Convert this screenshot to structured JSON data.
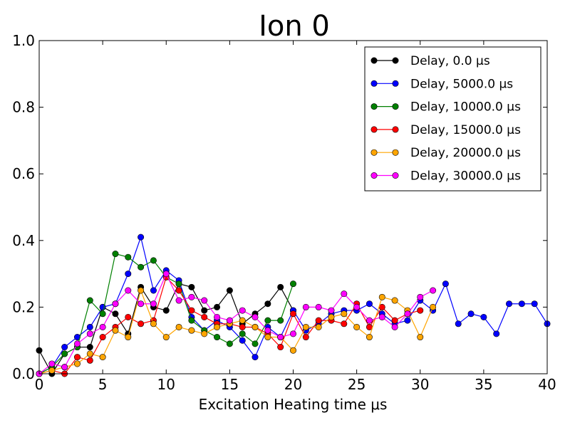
{
  "chart_data": {
    "type": "line",
    "title": "Ion 0",
    "xlabel": "Excitation Heating time μs",
    "ylabel": "",
    "xlim": [
      0,
      40
    ],
    "ylim": [
      0,
      1.0
    ],
    "xticks": [
      0,
      5,
      10,
      15,
      20,
      25,
      30,
      35,
      40
    ],
    "xtick_labels": [
      "0",
      "5",
      "10",
      "15",
      "20",
      "25",
      "30",
      "35",
      "40"
    ],
    "yticks": [
      0.0,
      0.2,
      0.4,
      0.6,
      0.8,
      1.0
    ],
    "ytick_labels": [
      "0.0",
      "0.2",
      "0.4",
      "0.6",
      "0.8",
      "1.0"
    ],
    "grid": false,
    "legend_position": "top-right",
    "series": [
      {
        "name": "Delay, 0.0 μs",
        "color": "#000000",
        "x": [
          0,
          1,
          2,
          3,
          4,
          5,
          6,
          7,
          8,
          9,
          10,
          11,
          12,
          13,
          14,
          15,
          16,
          17,
          18,
          19,
          20
        ],
        "y": [
          0.07,
          0.0,
          0.06,
          0.08,
          0.08,
          0.2,
          0.18,
          0.12,
          0.26,
          0.2,
          0.19,
          0.27,
          0.26,
          0.19,
          0.2,
          0.25,
          0.15,
          0.18,
          0.21,
          0.26,
          0.19
        ]
      },
      {
        "name": "Delay, 5000.0 μs",
        "color": "#0000ff",
        "x": [
          0,
          1,
          2,
          3,
          4,
          5,
          6,
          7,
          8,
          9,
          10,
          11,
          12,
          13,
          14,
          15,
          16,
          17,
          18,
          19,
          20,
          21,
          22,
          23,
          24,
          25,
          26,
          27,
          28,
          29,
          30,
          31,
          32,
          33,
          34,
          35,
          36,
          37,
          38,
          39,
          40
        ],
        "y": [
          0.0,
          0.02,
          0.08,
          0.11,
          0.14,
          0.2,
          0.21,
          0.3,
          0.41,
          0.25,
          0.31,
          0.28,
          0.17,
          0.13,
          0.16,
          0.14,
          0.1,
          0.05,
          0.14,
          0.11,
          0.19,
          0.13,
          0.15,
          0.18,
          0.19,
          0.19,
          0.21,
          0.18,
          0.15,
          0.16,
          0.22,
          0.19,
          0.27,
          0.15,
          0.18,
          0.17,
          0.12,
          0.21,
          0.21,
          0.21,
          0.15
        ]
      },
      {
        "name": "Delay, 10000.0 μs",
        "color": "#008000",
        "x": [
          0,
          1,
          2,
          3,
          4,
          5,
          6,
          7,
          8,
          9,
          10,
          11,
          12,
          13,
          14,
          15,
          16,
          17,
          18,
          19,
          20
        ],
        "y": [
          0.0,
          0.02,
          0.06,
          0.08,
          0.22,
          0.18,
          0.36,
          0.35,
          0.32,
          0.34,
          0.29,
          0.27,
          0.16,
          0.13,
          0.11,
          0.09,
          0.12,
          0.09,
          0.16,
          0.16,
          0.27
        ]
      },
      {
        "name": "Delay, 15000.0 μs",
        "color": "#ff0000",
        "x": [
          0,
          1,
          2,
          3,
          4,
          5,
          6,
          7,
          8,
          9,
          10,
          11,
          12,
          13,
          14,
          15,
          16,
          17,
          18,
          19,
          20,
          21,
          22,
          23,
          24,
          25,
          26,
          27,
          28,
          29,
          30
        ],
        "y": [
          0.0,
          0.01,
          0.0,
          0.05,
          0.04,
          0.11,
          0.14,
          0.17,
          0.15,
          0.16,
          0.29,
          0.25,
          0.19,
          0.17,
          0.15,
          0.15,
          0.14,
          0.14,
          0.12,
          0.08,
          0.18,
          0.11,
          0.16,
          0.16,
          0.15,
          0.21,
          0.14,
          0.2,
          0.16,
          0.18,
          0.19
        ]
      },
      {
        "name": "Delay, 20000.0 μs",
        "color": "#ffa500",
        "x": [
          0,
          1,
          2,
          3,
          4,
          5,
          6,
          7,
          8,
          9,
          10,
          11,
          12,
          13,
          14,
          15,
          16,
          17,
          18,
          19,
          20,
          21,
          22,
          23,
          24,
          25,
          26,
          27,
          28,
          29,
          30,
          31
        ],
        "y": [
          0.0,
          0.01,
          0.02,
          0.03,
          0.06,
          0.05,
          0.13,
          0.11,
          0.25,
          0.15,
          0.11,
          0.14,
          0.13,
          0.12,
          0.14,
          0.15,
          0.16,
          0.14,
          0.11,
          0.11,
          0.07,
          0.14,
          0.14,
          0.17,
          0.18,
          0.14,
          0.11,
          0.23,
          0.22,
          0.19,
          0.11,
          0.2
        ]
      },
      {
        "name": "Delay, 30000.0 μs",
        "color": "#ff00ff",
        "x": [
          0,
          1,
          2,
          3,
          4,
          5,
          6,
          7,
          8,
          9,
          10,
          11,
          12,
          13,
          14,
          15,
          16,
          17,
          18,
          19,
          20,
          21,
          22,
          23,
          24,
          25,
          26,
          27,
          28,
          29,
          30,
          31
        ],
        "y": [
          0.0,
          0.03,
          0.02,
          0.09,
          0.12,
          0.14,
          0.21,
          0.25,
          0.21,
          0.21,
          0.3,
          0.22,
          0.23,
          0.22,
          0.17,
          0.16,
          0.19,
          0.17,
          0.13,
          0.11,
          0.12,
          0.2,
          0.2,
          0.19,
          0.24,
          0.2,
          0.16,
          0.17,
          0.14,
          0.18,
          0.23,
          0.25
        ]
      }
    ]
  }
}
